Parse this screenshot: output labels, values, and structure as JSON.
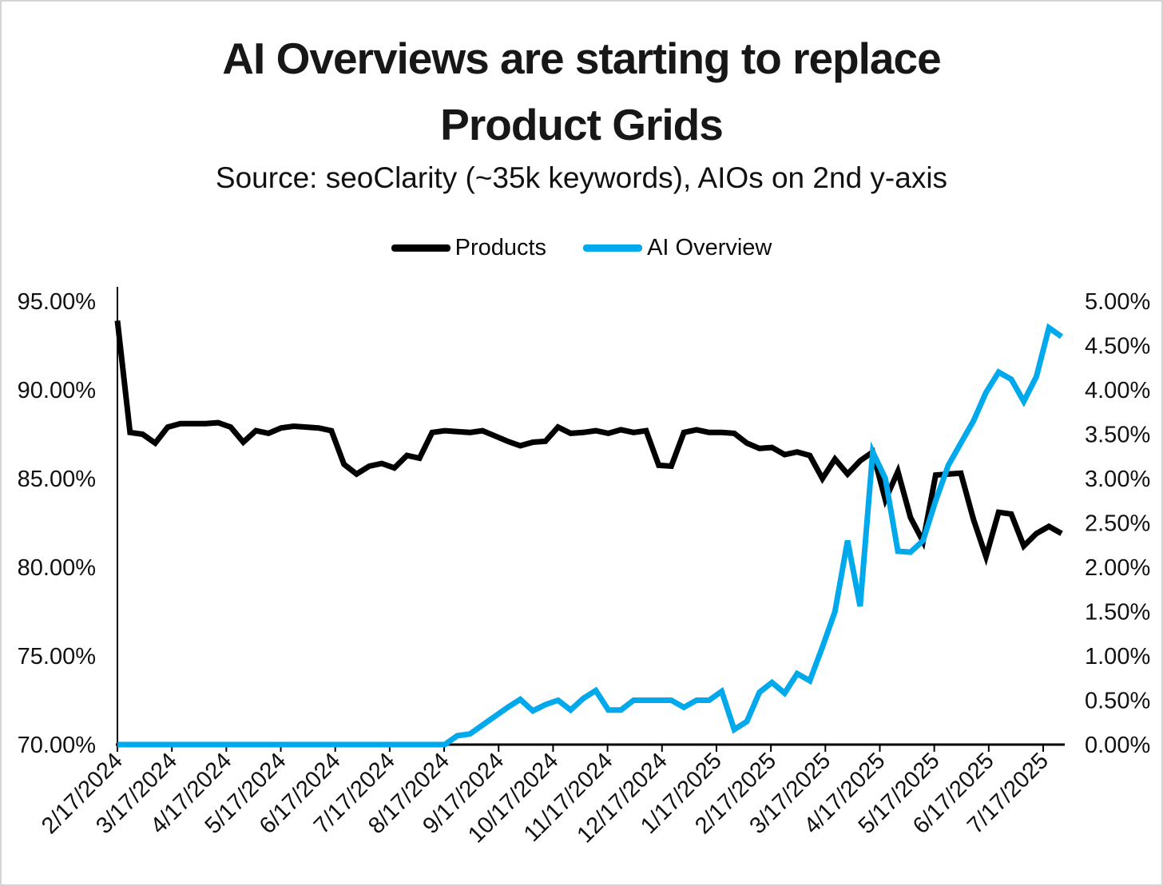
{
  "title": {
    "line1": "AI Overviews are starting to replace",
    "line2": "Product Grids"
  },
  "subtitle": "Source: seoClarity (~35k keywords), AIOs on 2nd y-axis",
  "legend": {
    "products_label": "Products",
    "ai_overview_label": "AI Overview"
  },
  "chart_data": {
    "type": "line",
    "title": "AI Overviews are starting to replace Product Grids",
    "subtitle": "Source: seoClarity (~35k keywords), AIOs on 2nd y-axis",
    "legend_position": "top-center",
    "grid": false,
    "x_tick_labels": [
      "2/17/2024",
      "3/17/2024",
      "4/17/2024",
      "5/17/2024",
      "6/17/2024",
      "7/17/2024",
      "8/17/2024",
      "9/17/2024",
      "10/17/2024",
      "11/17/2024",
      "12/17/2024",
      "1/17/2025",
      "2/17/2025",
      "3/17/2025",
      "4/17/2025",
      "5/17/2025",
      "6/17/2025",
      "7/17/2025"
    ],
    "x_resolution": "weekly",
    "left_axis": {
      "labels_top_to_bottom": [
        "95.00%",
        "90.00%",
        "85.00%",
        "80.00%",
        "75.00%",
        "70.00%"
      ],
      "min": 70,
      "max": 95
    },
    "right_axis": {
      "labels_top_to_bottom": [
        "5.00%",
        "4.50%",
        "4.00%",
        "3.50%",
        "3.00%",
        "2.50%",
        "2.00%",
        "1.50%",
        "1.00%",
        "0.50%",
        "0.00%"
      ],
      "min": 0,
      "max": 5
    },
    "series": [
      {
        "name": "Products",
        "color": "#000000",
        "axis": "left",
        "values": [
          93.9,
          87.6,
          87.5,
          87.0,
          87.9,
          88.1,
          88.1,
          88.1,
          88.15,
          87.9,
          87.05,
          87.7,
          87.55,
          87.85,
          87.95,
          87.9,
          87.85,
          87.7,
          85.8,
          85.25,
          85.7,
          85.85,
          85.6,
          86.3,
          86.15,
          87.6,
          87.7,
          87.65,
          87.6,
          87.7,
          87.4,
          87.1,
          86.85,
          87.05,
          87.1,
          87.9,
          87.55,
          87.6,
          87.7,
          87.55,
          87.75,
          87.6,
          87.7,
          85.75,
          85.7,
          87.6,
          87.75,
          87.6,
          87.6,
          87.55,
          87.0,
          86.7,
          86.75,
          86.35,
          86.5,
          86.3,
          85.0,
          86.1,
          85.25,
          86.0,
          86.5,
          83.8,
          85.4,
          82.8,
          81.45,
          85.2,
          85.25,
          85.3,
          82.7,
          80.6,
          83.1,
          83.0,
          81.2,
          81.9,
          82.3,
          81.9
        ]
      },
      {
        "name": "AI Overview",
        "color": "#00A8EC",
        "axis": "right",
        "values": [
          0,
          0,
          0,
          0,
          0,
          0,
          0,
          0,
          0,
          0,
          0,
          0,
          0,
          0,
          0,
          0,
          0,
          0,
          0,
          0,
          0,
          0,
          0,
          0,
          0,
          0,
          0,
          0.1,
          0.12,
          0.22,
          0.32,
          0.42,
          0.51,
          0.38,
          0.45,
          0.5,
          0.39,
          0.52,
          0.61,
          0.39,
          0.39,
          0.5,
          0.5,
          0.5,
          0.5,
          0.42,
          0.5,
          0.5,
          0.6,
          0.17,
          0.26,
          0.59,
          0.7,
          0.58,
          0.8,
          0.72,
          1.1,
          1.5,
          2.3,
          1.56,
          3.3,
          3.0,
          2.18,
          2.17,
          2.3,
          2.75,
          3.15,
          3.4,
          3.65,
          3.97,
          4.2,
          4.12,
          3.87,
          4.15,
          4.7,
          4.6
        ]
      }
    ]
  }
}
